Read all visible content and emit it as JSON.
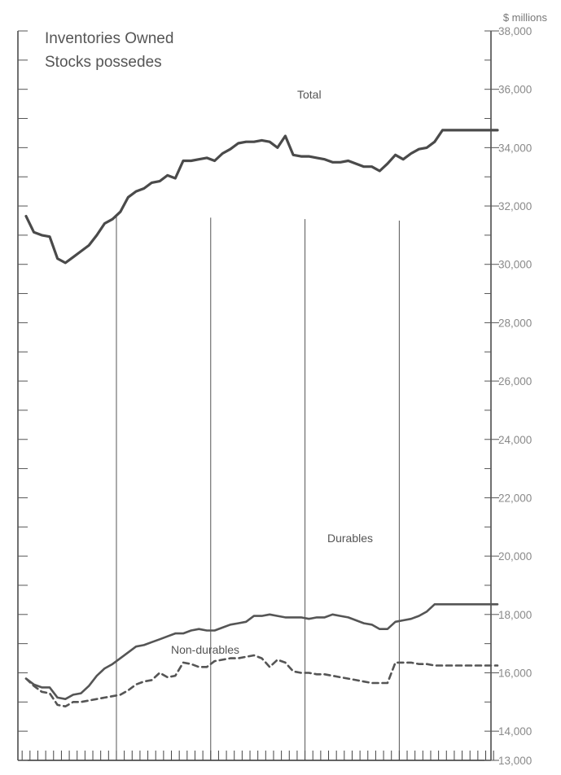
{
  "chart_data": {
    "type": "line",
    "title": "Inventories Owned",
    "subtitle": "Stocks possedes",
    "y_unit_label": "$ millions",
    "ylim": [
      13000,
      38000
    ],
    "y_ticks": [
      {
        "value": 13000,
        "label": "13,000"
      },
      {
        "value": 14000,
        "label": "14,000"
      },
      {
        "value": 16000,
        "label": "16,000"
      },
      {
        "value": 18000,
        "label": "18,000"
      },
      {
        "value": 20000,
        "label": "20,000"
      },
      {
        "value": 22000,
        "label": "22,000"
      },
      {
        "value": 24000,
        "label": "24,000"
      },
      {
        "value": 26000,
        "label": "26,000"
      },
      {
        "value": 28000,
        "label": "28,000"
      },
      {
        "value": 30000,
        "label": "30,000"
      },
      {
        "value": 32000,
        "label": "32,000"
      },
      {
        "value": 34000,
        "label": "34,000"
      },
      {
        "value": 36000,
        "label": "36,000"
      },
      {
        "value": 38000,
        "label": "38,000"
      }
    ],
    "x": [
      1,
      2,
      3,
      4,
      5,
      6,
      7,
      8,
      9,
      10,
      11,
      12,
      13,
      14,
      15,
      16,
      17,
      18,
      19,
      20,
      21,
      22,
      23,
      24,
      25,
      26,
      27,
      28,
      29,
      30,
      31,
      32,
      33,
      34,
      35,
      36,
      37,
      38,
      39,
      40,
      41,
      42,
      43,
      44,
      45,
      46,
      47,
      48,
      49,
      50,
      51,
      52,
      53,
      54,
      55,
      56,
      57,
      58,
      59,
      60,
      61
    ],
    "x_year_boundaries": [
      12.5,
      24.5,
      36.5,
      48.5
    ],
    "series": [
      {
        "name": "Total",
        "style": "solid-thick",
        "color": "#4a4a4a",
        "values": [
          31650,
          31100,
          31000,
          30950,
          30200,
          30050,
          30250,
          30450,
          30650,
          31000,
          31400,
          31550,
          31800,
          32300,
          32500,
          32600,
          32800,
          32850,
          33050,
          32950,
          33550,
          33550,
          33600,
          33650,
          33550,
          33800,
          33950,
          34150,
          34200,
          34200,
          34250,
          34200,
          34000,
          34400,
          33750,
          33700,
          33700,
          33650,
          33600,
          33500,
          33500,
          33550,
          33450,
          33350,
          33350,
          33200,
          33450,
          33750,
          33600,
          33800,
          33950,
          34000,
          34200,
          34600,
          34600,
          34600,
          34600,
          34600,
          34600,
          34600,
          34600
        ]
      },
      {
        "name": "Durables",
        "style": "solid",
        "color": "#555555",
        "values": [
          15800,
          15600,
          15500,
          15500,
          15150,
          15100,
          15250,
          15300,
          15550,
          15900,
          16150,
          16300,
          16500,
          16700,
          16900,
          16950,
          17050,
          17150,
          17250,
          17350,
          17350,
          17450,
          17500,
          17450,
          17450,
          17550,
          17650,
          17700,
          17750,
          17950,
          17950,
          18000,
          17950,
          17900,
          17900,
          17900,
          17850,
          17900,
          17900,
          18000,
          17950,
          17900,
          17800,
          17700,
          17650,
          17500,
          17500,
          17750,
          17800,
          17850,
          17950,
          18100,
          18350,
          18350,
          18350,
          18350,
          18350,
          18350,
          18350,
          18350,
          18350
        ]
      },
      {
        "name": "Non-durables",
        "style": "dashed",
        "color": "#555555",
        "values": [
          15800,
          15550,
          15350,
          15300,
          14900,
          14850,
          15000,
          15000,
          15050,
          15100,
          15150,
          15200,
          15250,
          15400,
          15600,
          15700,
          15750,
          16000,
          15850,
          15900,
          16350,
          16300,
          16200,
          16200,
          16400,
          16450,
          16500,
          16500,
          16550,
          16600,
          16500,
          16200,
          16450,
          16350,
          16050,
          16000,
          16000,
          15950,
          15950,
          15900,
          15850,
          15800,
          15750,
          15700,
          15650,
          15650,
          15650,
          16350,
          16350,
          16350,
          16300,
          16300,
          16250,
          16250,
          16250,
          16250,
          16250,
          16250,
          16250,
          16250,
          16250
        ]
      }
    ]
  }
}
